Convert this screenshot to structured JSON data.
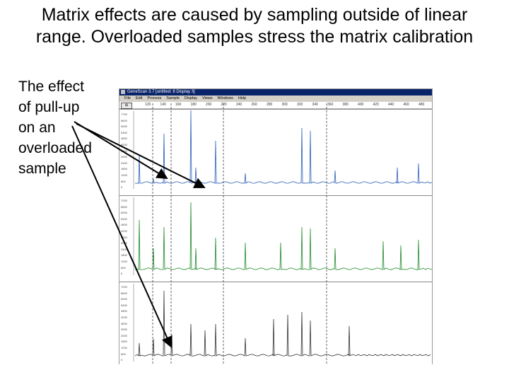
{
  "slide": {
    "title_line1": "Matrix effects are caused by sampling outside of linear",
    "title_line2": "range. Overloaded samples stress the matrix calibration",
    "caption_lines": [
      "The effect",
      "of pull-up",
      "on an",
      "overloaded",
      "sample"
    ]
  },
  "app": {
    "window_title": "GeneScan 3.7  [untitled: 8 Display 3]",
    "menu": [
      "File",
      "Edit",
      "Process",
      "Sample",
      "Display",
      "Views",
      "Windows",
      "Help"
    ],
    "ruler_ticks": [
      "120",
      "140",
      "160",
      "180",
      "200",
      "220",
      "240",
      "260",
      "280",
      "300",
      "320",
      "340",
      "360",
      "380",
      "400",
      "420",
      "440",
      "460",
      "480"
    ]
  },
  "panels": [
    {
      "color": "#2a5fb8",
      "y_labels": [
        "7700",
        "6600",
        "6000",
        "5400",
        "4800",
        "4200",
        "3600",
        "3000",
        "2400",
        "1800",
        "1200",
        "600",
        "0"
      ]
    },
    {
      "color": "#1e8a2a",
      "y_labels": [
        "7200",
        "6600",
        "6000",
        "5400",
        "4800",
        "4200",
        "3600",
        "3000",
        "2400",
        "1800",
        "1200",
        "600",
        "0"
      ]
    },
    {
      "color": "#333333",
      "y_labels": [
        "7200",
        "6600",
        "6000",
        "5400",
        "4800",
        "4200",
        "3600",
        "3000",
        "2400",
        "1800",
        "1200",
        "600",
        "0"
      ]
    }
  ],
  "colors": {
    "arrow": "#000000",
    "titlebar": "#0a246a"
  }
}
